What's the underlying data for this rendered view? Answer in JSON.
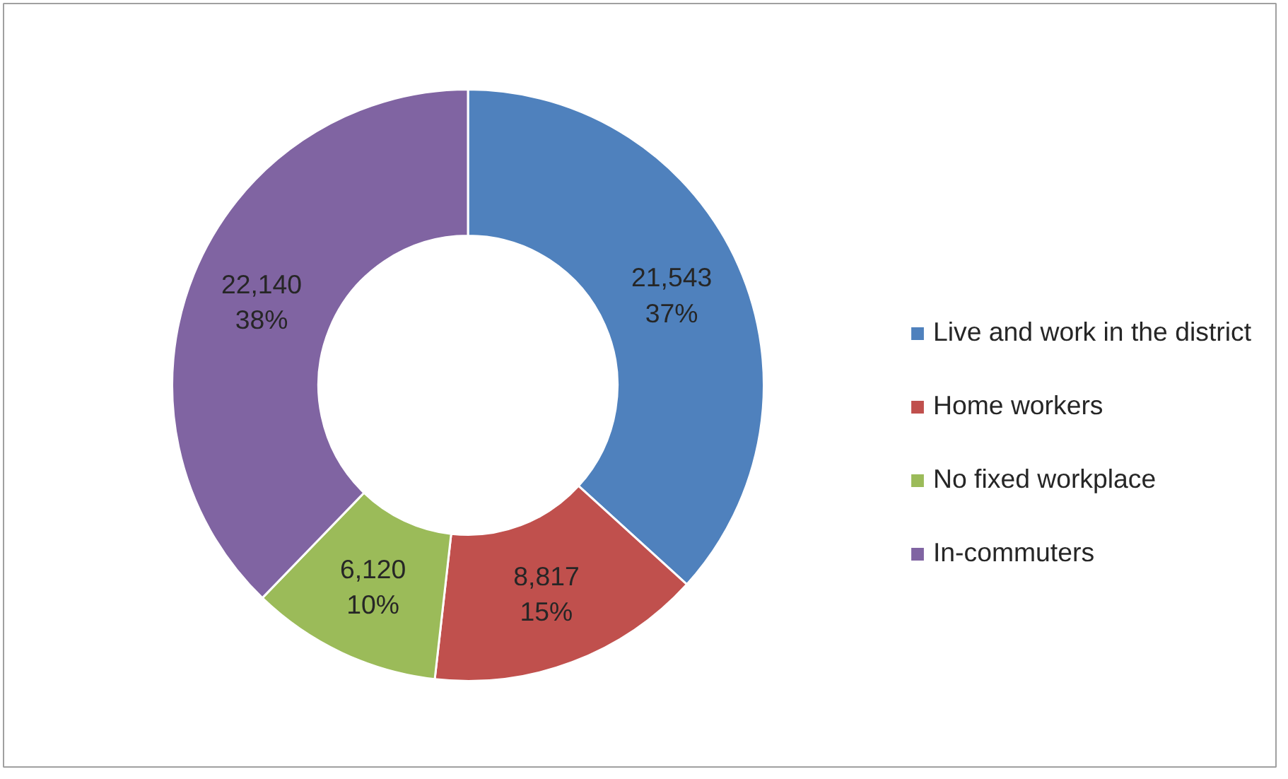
{
  "chart_data": {
    "type": "donut",
    "categories": [
      "Live and work in the district",
      "Home workers",
      "No fixed workplace",
      "In-commuters"
    ],
    "values": [
      21543,
      8817,
      6120,
      22140
    ],
    "colors": [
      "#4f81bd",
      "#c0504d",
      "#9bbb59",
      "#8064a2"
    ],
    "value_labels": [
      "21,543\n37%",
      "8,817\n15%",
      "6,120\n10%",
      "22,140\n38%"
    ],
    "legend": "right"
  }
}
